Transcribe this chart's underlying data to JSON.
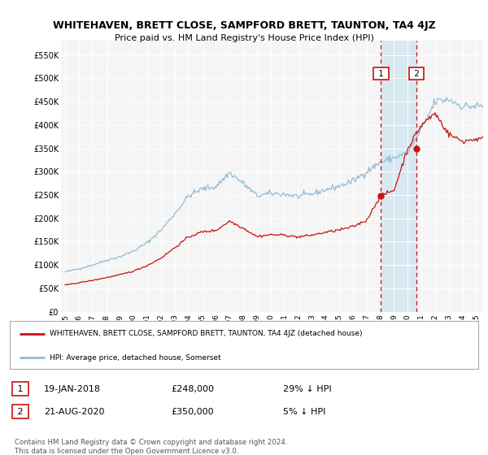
{
  "title": "WHITEHAVEN, BRETT CLOSE, SAMPFORD BRETT, TAUNTON, TA4 4JZ",
  "subtitle": "Price paid vs. HM Land Registry's House Price Index (HPI)",
  "legend_line1": "WHITEHAVEN, BRETT CLOSE, SAMPFORD BRETT, TAUNTON, TA4 4JZ (detached house)",
  "legend_line2": "HPI: Average price, detached house, Somerset",
  "annotation1_label": "1",
  "annotation1_date": "19-JAN-2018",
  "annotation1_price": "£248,000",
  "annotation1_hpi": "29% ↓ HPI",
  "annotation2_label": "2",
  "annotation2_date": "21-AUG-2020",
  "annotation2_price": "£350,000",
  "annotation2_hpi": "5% ↓ HPI",
  "footer": "Contains HM Land Registry data © Crown copyright and database right 2024.\nThis data is licensed under the Open Government Licence v3.0.",
  "hpi_color": "#91bcd6",
  "price_color": "#cc1111",
  "dashed_line_color": "#cc1111",
  "background_color": "#ffffff",
  "plot_bg_color": "#f5f5f5",
  "shade_color": "#d8e8f0",
  "ylim": [
    0,
    580000
  ],
  "yticks": [
    0,
    50000,
    100000,
    150000,
    200000,
    250000,
    300000,
    350000,
    400000,
    450000,
    500000,
    550000
  ],
  "ytick_labels": [
    "£0",
    "£50K",
    "£100K",
    "£150K",
    "£200K",
    "£250K",
    "£300K",
    "£350K",
    "£400K",
    "£450K",
    "£500K",
    "£550K"
  ],
  "sale1_x": 2018.05,
  "sale1_y": 248000,
  "sale2_x": 2020.64,
  "sale2_y": 350000,
  "xtick_years": [
    1995,
    1996,
    1997,
    1998,
    1999,
    2000,
    2001,
    2002,
    2003,
    2004,
    2005,
    2006,
    2007,
    2008,
    2009,
    2010,
    2011,
    2012,
    2013,
    2014,
    2015,
    2016,
    2017,
    2018,
    2019,
    2020,
    2021,
    2022,
    2023,
    2024,
    2025
  ],
  "xlim": [
    1994.7,
    2025.5
  ]
}
